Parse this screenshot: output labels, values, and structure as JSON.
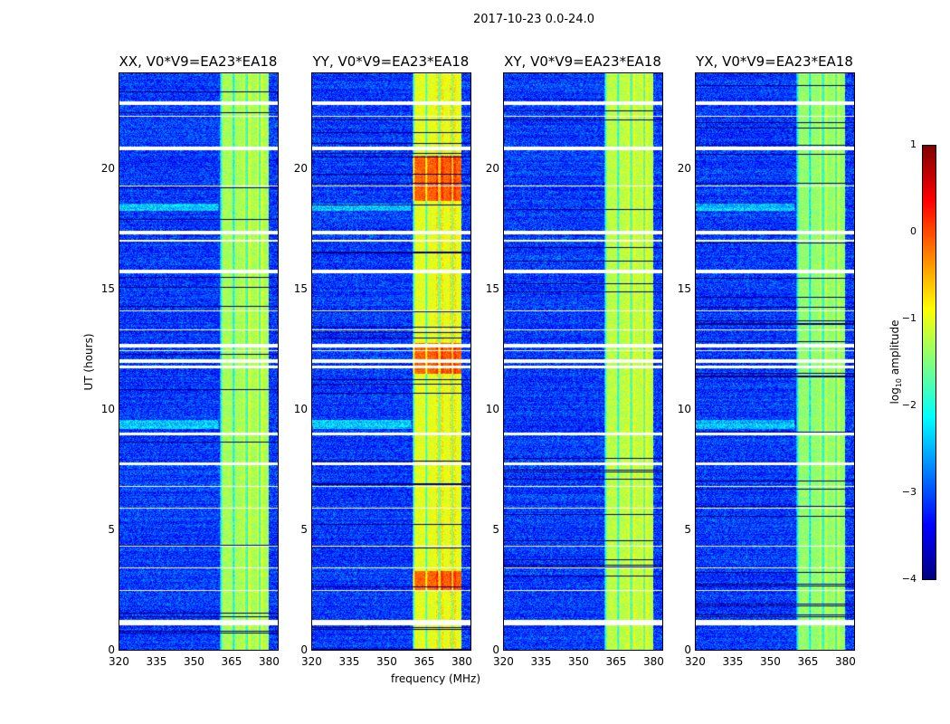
{
  "suptitle": "2017-10-23 0.0-24.0",
  "chart_data": {
    "type": "heatmap",
    "title": "2017-10-23 0.0-24.0",
    "xlabel": "frequency (MHz)",
    "ylabel": "UT (hours)",
    "xlim": [
      320,
      384
    ],
    "ylim": [
      0,
      24
    ],
    "xticks": [
      "320",
      "335",
      "350",
      "365",
      "380"
    ],
    "xtick_values": [
      320,
      335,
      350,
      365,
      380
    ],
    "yticks": [
      "0",
      "5",
      "10",
      "15",
      "20"
    ],
    "ytick_values": [
      0,
      5,
      10,
      15,
      20
    ],
    "panels": [
      {
        "title": "XX, V0*V9=EA23*EA18",
        "band_level": -1.3,
        "bright_hours": []
      },
      {
        "title": "YY, V0*V9=EA23*EA18",
        "band_level": -1.0,
        "bright_hours": [
          [
            18.7,
            20.6
          ],
          [
            11.5,
            12.8
          ],
          [
            2.5,
            3.3
          ]
        ]
      },
      {
        "title": "XY, V0*V9=EA23*EA18",
        "band_level": -1.2,
        "bright_hours": []
      },
      {
        "title": "YX, V0*V9=EA23*EA18",
        "band_level": -1.4,
        "bright_hours": []
      }
    ],
    "band_mhz": [
      360.5,
      380
    ],
    "background_level": -3.1,
    "flagged_hours": [
      [
        22.7,
        22.85
      ],
      [
        20.8,
        20.95
      ],
      [
        17.3,
        17.45
      ],
      [
        17.0,
        17.1
      ],
      [
        15.7,
        15.85
      ],
      [
        12.6,
        12.75
      ],
      [
        12.45,
        12.5
      ],
      [
        11.95,
        12.1
      ],
      [
        11.75,
        11.85
      ],
      [
        8.95,
        9.05
      ],
      [
        7.7,
        7.8
      ],
      [
        1.05,
        1.25
      ],
      [
        22.2,
        22.25
      ],
      [
        19.3,
        19.35
      ],
      [
        14.1,
        14.15
      ],
      [
        13.3,
        13.35
      ],
      [
        6.8,
        6.85
      ],
      [
        5.9,
        5.95
      ],
      [
        4.3,
        4.35
      ],
      [
        3.4,
        3.45
      ],
      [
        2.45,
        2.5
      ]
    ],
    "colorbar": {
      "label": "log10 amplitude",
      "label_main": "log",
      "label_sub": "10",
      "label_rest": " amplitude",
      "range": [
        -4,
        1
      ],
      "ticks": [
        "−4",
        "−3",
        "−2",
        "−1",
        "0",
        "1"
      ],
      "tick_values": [
        -4,
        -3,
        -2,
        -1,
        0,
        1
      ]
    }
  }
}
